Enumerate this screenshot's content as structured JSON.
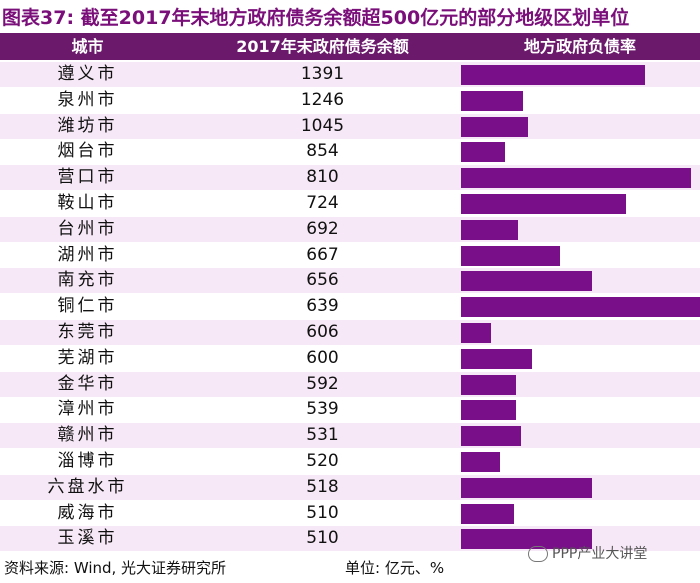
{
  "chart_data": {
    "type": "table",
    "title": "图表37: 截至2017年末地方政府债务余额超500亿元的部分地级区划单位",
    "columns": [
      "城市",
      "2017年末政府债务余额",
      "地方政府负债率"
    ],
    "categories": [
      "遵义市",
      "泉州市",
      "潍坊市",
      "烟台市",
      "营口市",
      "鞍山市",
      "台州市",
      "湖州市",
      "南充市",
      "铜仁市",
      "东莞市",
      "芜湖市",
      "金华市",
      "漳州市",
      "赣州市",
      "淄博市",
      "六盘水市",
      "威海市",
      "玉溪市"
    ],
    "series": [
      {
        "name": "2017年末政府债务余额",
        "values": [
          1391,
          1246,
          1045,
          854,
          810,
          724,
          692,
          667,
          656,
          639,
          606,
          600,
          592,
          539,
          531,
          520,
          518,
          510,
          510
        ]
      },
      {
        "name": "地方政府负债率",
        "values": [
          0.8,
          0.27,
          0.29,
          0.19,
          1.0,
          0.72,
          0.25,
          0.43,
          0.57,
          1.04,
          0.13,
          0.31,
          0.24,
          0.24,
          0.26,
          0.17,
          0.57,
          0.23,
          0.57
        ]
      }
    ],
    "bar_color": "#7a0f8a"
  },
  "footer": {
    "source": "资料来源: Wind, 光大证券研究所",
    "unit": "单位: 亿元、%"
  },
  "watermark": {
    "text": "PPP产业大讲堂"
  },
  "colors": {
    "header_bg": "#6b1a6b",
    "title": "#7a0f7a",
    "row_stripe": "#f6e8f6"
  }
}
